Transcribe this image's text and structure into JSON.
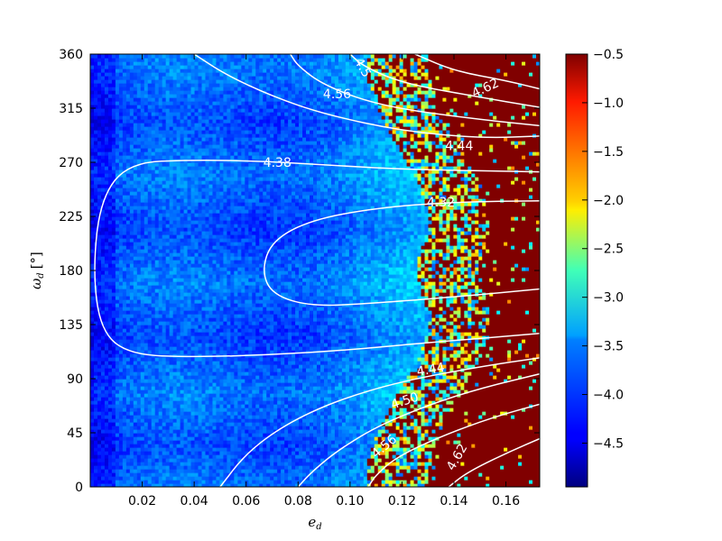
{
  "chart_data": {
    "type": "heatmap",
    "title": "",
    "xlabel": "e",
    "xlabel_sub": "d",
    "ylabel": "ω",
    "ylabel_sub": "d",
    "ylabel_unit": "[°]",
    "xlim": [
      0.0,
      0.173
    ],
    "ylim": [
      0,
      360
    ],
    "x_ticks": [
      0.02,
      0.04,
      0.06,
      0.08,
      0.1,
      0.12,
      0.14,
      0.16
    ],
    "x_tick_labels": [
      "0.02",
      "0.04",
      "0.06",
      "0.08",
      "0.10",
      "0.12",
      "0.14",
      "0.16"
    ],
    "y_ticks": [
      0,
      45,
      90,
      135,
      180,
      225,
      270,
      315,
      360
    ],
    "y_tick_labels": [
      "0",
      "45",
      "90",
      "135",
      "180",
      "225",
      "270",
      "315",
      "360"
    ],
    "colorbar": {
      "colormap": "jet",
      "range": [
        -4.95,
        -0.5
      ],
      "ticks": [
        -0.5,
        -1.0,
        -1.5,
        -2.0,
        -2.5,
        -3.0,
        -3.5,
        -4.0,
        -4.5
      ],
      "tick_labels": [
        "−0.5",
        "−1.0",
        "−1.5",
        "−2.0",
        "−2.5",
        "−3.0",
        "−3.5",
        "−4.0",
        "−4.5"
      ]
    },
    "grid": false,
    "contour_color": "#ffffff",
    "contours": [
      {
        "label": "4.38",
        "points": [
          [
            0.175,
            262
          ],
          [
            0.12,
            264
          ],
          [
            0.09,
            268
          ],
          [
            0.065,
            271
          ],
          [
            0.04,
            272
          ],
          [
            0.015,
            270
          ],
          [
            0.004,
            240
          ],
          [
            0.001,
            180
          ],
          [
            0.004,
            130
          ],
          [
            0.015,
            110
          ],
          [
            0.04,
            108
          ],
          [
            0.07,
            110
          ],
          [
            0.1,
            114
          ],
          [
            0.13,
            120
          ],
          [
            0.175,
            128
          ]
        ]
      },
      {
        "label": "4.32",
        "points": [
          [
            0.175,
            238
          ],
          [
            0.14,
            237
          ],
          [
            0.11,
            232
          ],
          [
            0.085,
            222
          ],
          [
            0.07,
            205
          ],
          [
            0.066,
            180
          ],
          [
            0.07,
            160
          ],
          [
            0.085,
            150
          ],
          [
            0.11,
            153
          ],
          [
            0.14,
            158
          ],
          [
            0.175,
            165
          ]
        ]
      },
      {
        "label": "4.44",
        "points": [
          [
            0.175,
            292
          ],
          [
            0.15,
            290
          ],
          [
            0.12,
            296
          ],
          [
            0.09,
            310
          ],
          [
            0.07,
            325
          ],
          [
            0.052,
            343
          ],
          [
            0.04,
            360
          ]
        ]
      },
      {
        "label": "4.44",
        "points": [
          [
            0.175,
            108
          ],
          [
            0.15,
            100
          ],
          [
            0.12,
            88
          ],
          [
            0.095,
            72
          ],
          [
            0.075,
            52
          ],
          [
            0.06,
            28
          ],
          [
            0.05,
            0
          ]
        ]
      },
      {
        "label": "4.50",
        "points": [
          [
            0.175,
            300
          ],
          [
            0.14,
            308
          ],
          [
            0.11,
            318
          ],
          [
            0.09,
            334
          ],
          [
            0.08,
            350
          ],
          [
            0.077,
            360
          ]
        ]
      },
      {
        "label": "4.50",
        "points": [
          [
            0.175,
            95
          ],
          [
            0.15,
            82
          ],
          [
            0.13,
            68
          ],
          [
            0.11,
            50
          ],
          [
            0.095,
            30
          ],
          [
            0.085,
            12
          ],
          [
            0.08,
            0
          ]
        ]
      },
      {
        "label": "4.56",
        "points": [
          [
            0.175,
            315
          ],
          [
            0.145,
            326
          ],
          [
            0.12,
            336
          ],
          [
            0.105,
            350
          ],
          [
            0.1,
            360
          ]
        ]
      },
      {
        "label": "4.56",
        "points": [
          [
            0.175,
            70
          ],
          [
            0.155,
            58
          ],
          [
            0.135,
            42
          ],
          [
            0.118,
            25
          ],
          [
            0.11,
            10
          ],
          [
            0.107,
            0
          ]
        ]
      },
      {
        "label": "4.62",
        "points": [
          [
            0.175,
            330
          ],
          [
            0.16,
            338
          ],
          [
            0.14,
            346
          ],
          [
            0.125,
            360
          ]
        ]
      },
      {
        "label": "4.62",
        "points": [
          [
            0.175,
            42
          ],
          [
            0.16,
            28
          ],
          [
            0.145,
            12
          ],
          [
            0.138,
            0
          ]
        ]
      }
    ],
    "contour_labels": [
      {
        "text": "4.38",
        "x": 0.072,
        "y": 270,
        "angle": 0
      },
      {
        "text": "4.32",
        "x": 0.135,
        "y": 237,
        "angle": 0
      },
      {
        "text": "4.44",
        "x": 0.142,
        "y": 284,
        "angle": 0
      },
      {
        "text": "4.44",
        "x": 0.131,
        "y": 98,
        "angle": -10
      },
      {
        "text": "4.50",
        "x": 0.121,
        "y": 72,
        "angle": -18
      },
      {
        "text": "4.56",
        "x": 0.113,
        "y": 34,
        "angle": -40
      },
      {
        "text": "4.62",
        "x": 0.141,
        "y": 25,
        "angle": -60
      },
      {
        "text": "4.56",
        "x": 0.095,
        "y": 327,
        "angle": 0
      },
      {
        "text": "4.62",
        "x": 0.152,
        "y": 332,
        "angle": -25
      },
      {
        "text": "4.5",
        "x": 0.105,
        "y": 349,
        "angle": 60
      }
    ]
  }
}
